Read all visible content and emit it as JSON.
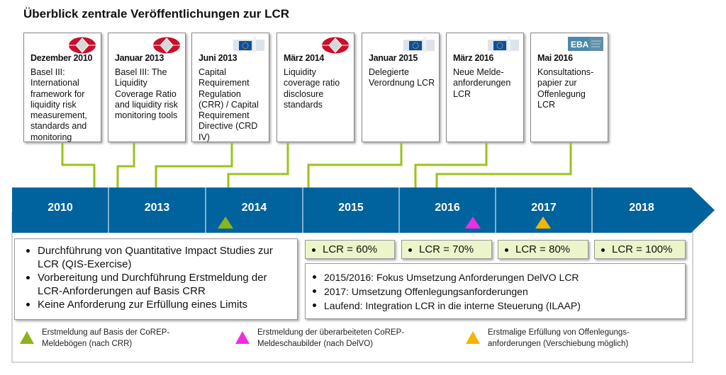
{
  "title": "Überblick zentrale Veröffentlichungen zur LCR",
  "cards": [
    {
      "date": "Dezember 2010",
      "desc": "Basel III: International framework for liquidity risk measurement, standards and monitoring",
      "logo": "bis-logo"
    },
    {
      "date": "Januar 2013",
      "desc": "Basel III: The Liquidity Coverage Ratio and liquidity risk monitoring tools",
      "logo": "bis-logo"
    },
    {
      "date": "Juni 2013",
      "desc": "Capital Requirement Regulation (CRR) / Capital Requirement Directive (CRD IV)",
      "logo": "eu-commission-logo"
    },
    {
      "date": "März 2014",
      "desc": "Liquidity coverage ratio disclosure standards",
      "logo": "bis-logo"
    },
    {
      "date": "Januar 2015",
      "desc": "Delegierte Verordnung LCR",
      "logo": "eu-commission-logo"
    },
    {
      "date": "März 2016",
      "desc": "Neue Melde-anforderungen LCR",
      "logo": "eu-commission-logo"
    },
    {
      "date": "Mai 2016",
      "desc": "Konsultations-papier zur Offenlegung LCR",
      "logo": "eba-logo",
      "logo_text": "EBA"
    }
  ],
  "years": [
    "2010",
    "2013",
    "2014",
    "2015",
    "2016",
    "2017",
    "2018"
  ],
  "left_box": [
    "Durchführung von Quantitative Impact Studies zur LCR (QIS-Exercise)",
    "Vorbereitung und Durchführung Erstmeldung der LCR-Anforderungen auf Basis CRR",
    "Keine Anforderung zur Erfüllung eines Limits"
  ],
  "lcr_levels": [
    "LCR = 60%",
    "LCR = 70%",
    "LCR = 80%",
    "LCR = 100%"
  ],
  "right_box": [
    "2015/2016: Fokus Umsetzung Anforderungen DelVO LCR",
    "2017: Umsetzung Offenlegungsanforderungen",
    "Laufend: Integration LCR in die interne Steuerung (ILAAP)"
  ],
  "legend": [
    {
      "color": "#8db31a",
      "text": "Erstmeldung auf Basis der CoREP-Meldebögen (nach CRR)"
    },
    {
      "color": "#ee2ee0",
      "text": "Erstmeldung der überarbeiteten CoREP-Meldeschaubilder (nach DelVO)"
    },
    {
      "color": "#f5b400",
      "text": "Erstmalige Erfüllung von Offenlegungs-anforderungen (Verschiebung möglich)"
    }
  ],
  "colors": {
    "timeline": "#00639e",
    "connector": "#9ac31c",
    "lcr_fill": "#ebf5c9"
  }
}
